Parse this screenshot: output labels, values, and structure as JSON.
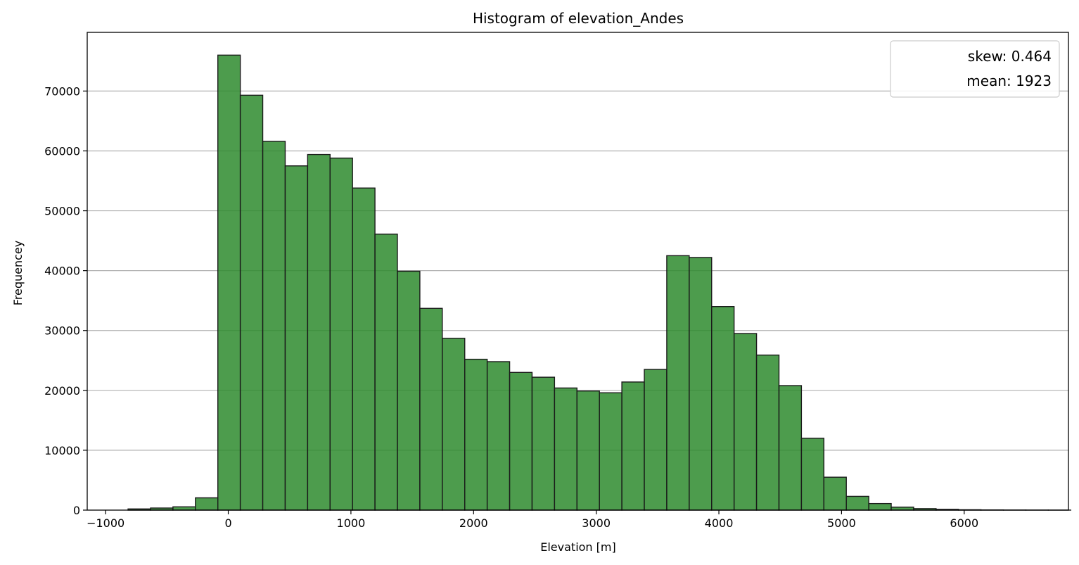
{
  "chart_data": {
    "type": "bar",
    "title": "Histogram of elevation_Andes",
    "xlabel": "Elevation [m]",
    "ylabel": "Frequencey",
    "xlim": [
      -1150,
      6850
    ],
    "ylim": [
      0,
      79800
    ],
    "xticks": [
      -1000,
      0,
      1000,
      2000,
      3000,
      4000,
      5000,
      6000
    ],
    "yticks": [
      0,
      10000,
      20000,
      30000,
      40000,
      50000,
      60000,
      70000
    ],
    "grid": "y",
    "bar_color": "#2e8b2e",
    "edge_color": "#1a1a1a",
    "bins": {
      "start": -1000,
      "width": 183,
      "counts": [
        0,
        200,
        350,
        550,
        2050,
        76000,
        69300,
        61600,
        57500,
        59400,
        58800,
        53800,
        46100,
        39900,
        33700,
        28700,
        25200,
        24800,
        23000,
        22200,
        20400,
        19900,
        19600,
        21400,
        23500,
        42500,
        42200,
        34000,
        29500,
        25900,
        20800,
        12000,
        5500,
        2300,
        1100,
        500,
        250,
        130,
        60,
        30,
        15,
        8,
        4
      ]
    },
    "legend": {
      "position": "top-right",
      "entries": [
        "skew: 0.464",
        "mean: 1923"
      ]
    }
  }
}
